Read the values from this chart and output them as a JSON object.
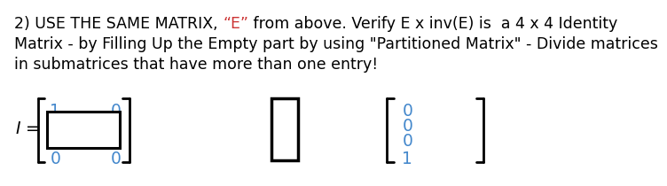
{
  "E_color": "#cc3333",
  "text_color": "#000000",
  "number_color": "#4488cc",
  "bg_color": "#ffffff",
  "line1_parts": [
    [
      "2) USE THE SAME MATRIX, ",
      "#000000"
    ],
    [
      "“E”",
      "#cc3333"
    ],
    [
      " from above. Verify E x inv(E) is  a 4 x 4 Identity",
      "#000000"
    ]
  ],
  "line2": "Matrix - by Filling Up the Empty part by using \"Partitioned Matrix\" - Divide matrices",
  "line3": "in submatrices that have more than one entry!",
  "label_I": "I",
  "top_left_num": "1",
  "top_right_num": "0",
  "bot_left_num": "0",
  "bot_right_num": "0",
  "right_col": [
    "0",
    "0",
    "0",
    "1"
  ],
  "font_size_title": 12.5,
  "font_size_matrix": 13.5
}
